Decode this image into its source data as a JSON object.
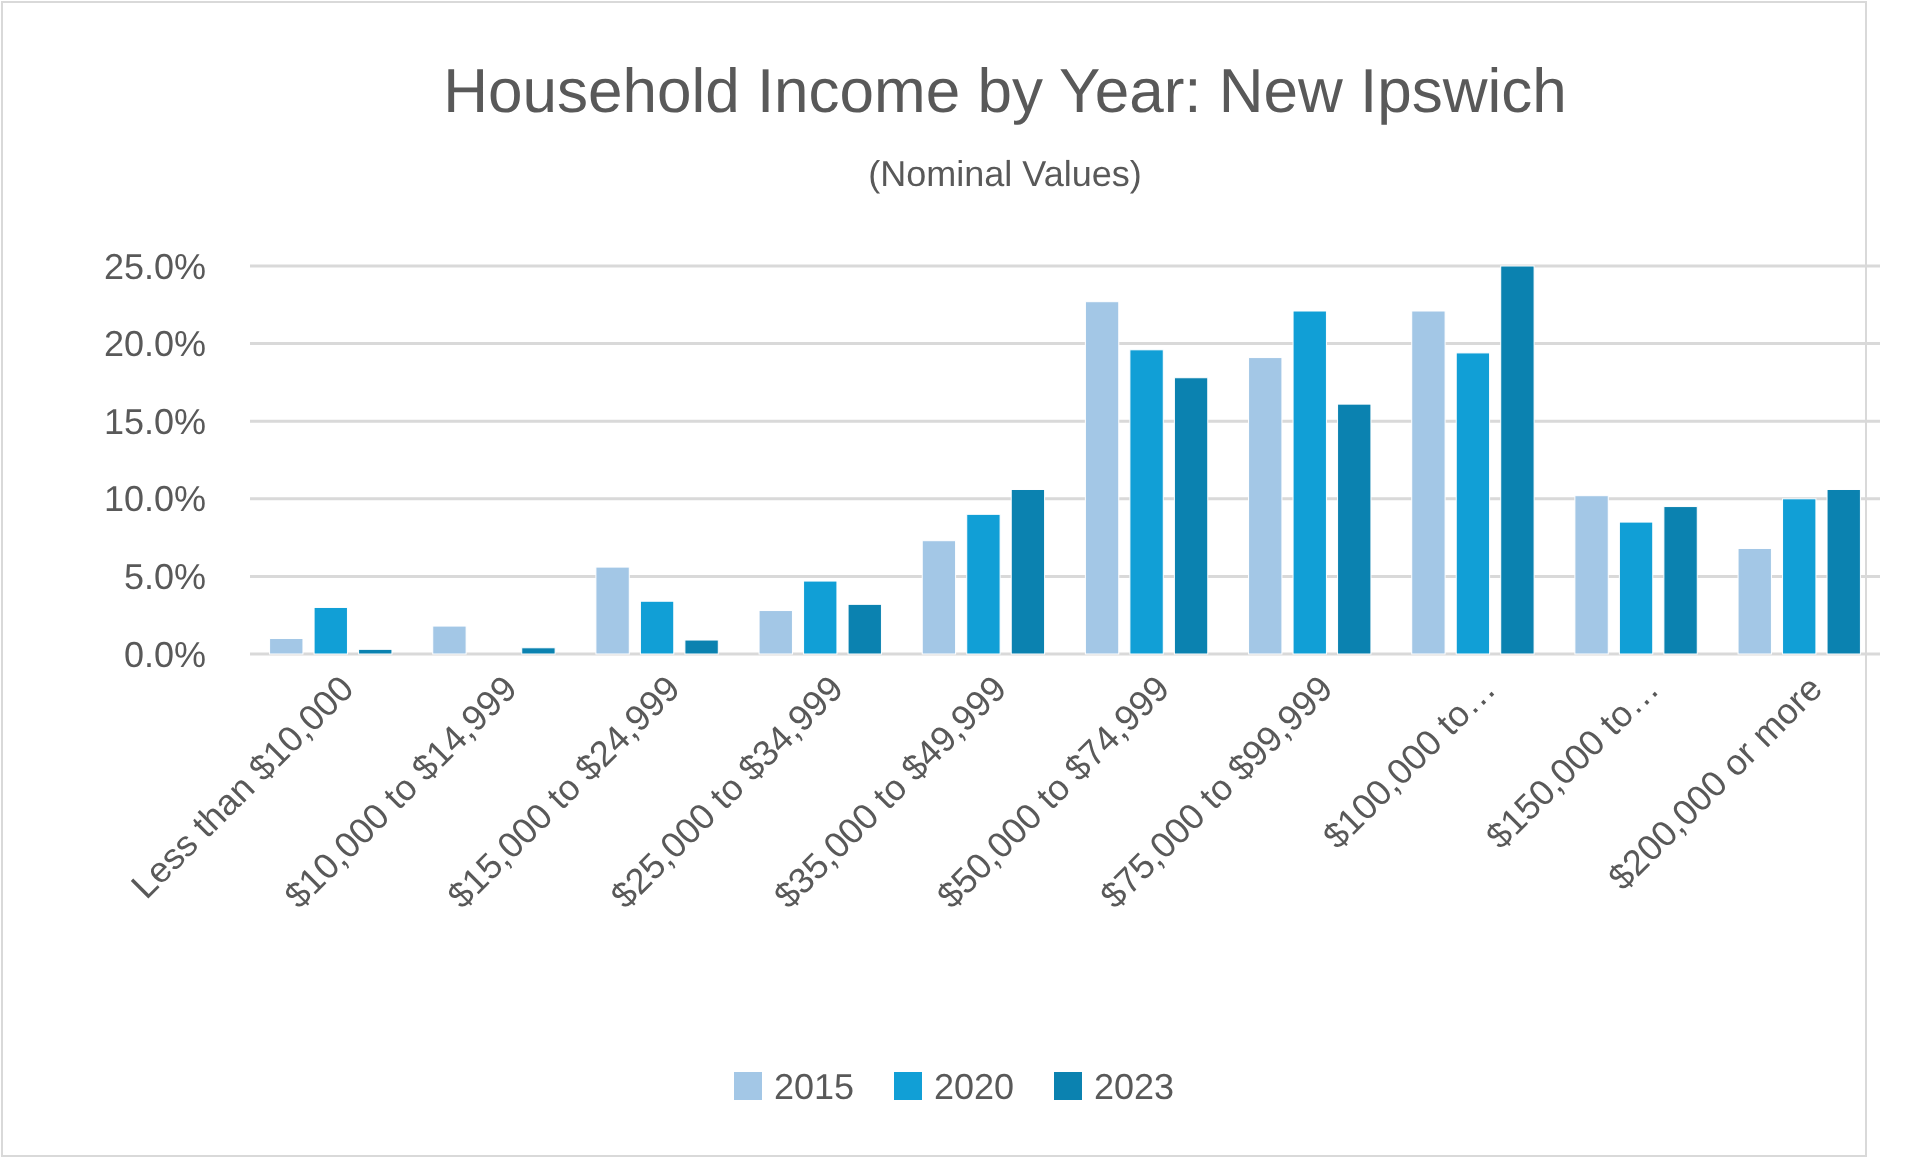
{
  "chart_data": {
    "type": "bar",
    "title": "Household Income by Year: New Ipswich",
    "subtitle": "(Nominal Values)",
    "categories": [
      "Less than $10,000",
      "$10,000 to $14,999",
      "$15,000 to $24,999",
      "$25,000 to $34,999",
      "$35,000 to $49,999",
      "$50,000 to $74,999",
      "$75,000 to $99,999",
      "$100,000 to…",
      "$150,000 to…",
      "$200,000 or more"
    ],
    "series": [
      {
        "name": "2015",
        "color": "#a3c7e6",
        "values": [
          1.0,
          1.8,
          5.6,
          2.8,
          7.3,
          22.7,
          19.1,
          22.1,
          10.2,
          6.8
        ]
      },
      {
        "name": "2020",
        "color": "#119fd6",
        "values": [
          3.0,
          0,
          3.4,
          4.7,
          9.0,
          19.6,
          22.1,
          19.4,
          8.5,
          10.0
        ]
      },
      {
        "name": "2023",
        "color": "#0b82b0",
        "values": [
          0.3,
          0.4,
          0.9,
          3.2,
          10.6,
          17.8,
          16.1,
          25.0,
          9.5,
          10.6
        ]
      }
    ],
    "ylim": [
      0,
      25
    ],
    "yticks": [
      {
        "value": 0,
        "label": "0.0%"
      },
      {
        "value": 5,
        "label": "5.0%"
      },
      {
        "value": 10,
        "label": "10.0%"
      },
      {
        "value": 15,
        "label": "15.0%"
      },
      {
        "value": 20,
        "label": "20.0%"
      },
      {
        "value": 25,
        "label": "25.0%"
      }
    ],
    "grid": "y",
    "legend": "bottom"
  }
}
